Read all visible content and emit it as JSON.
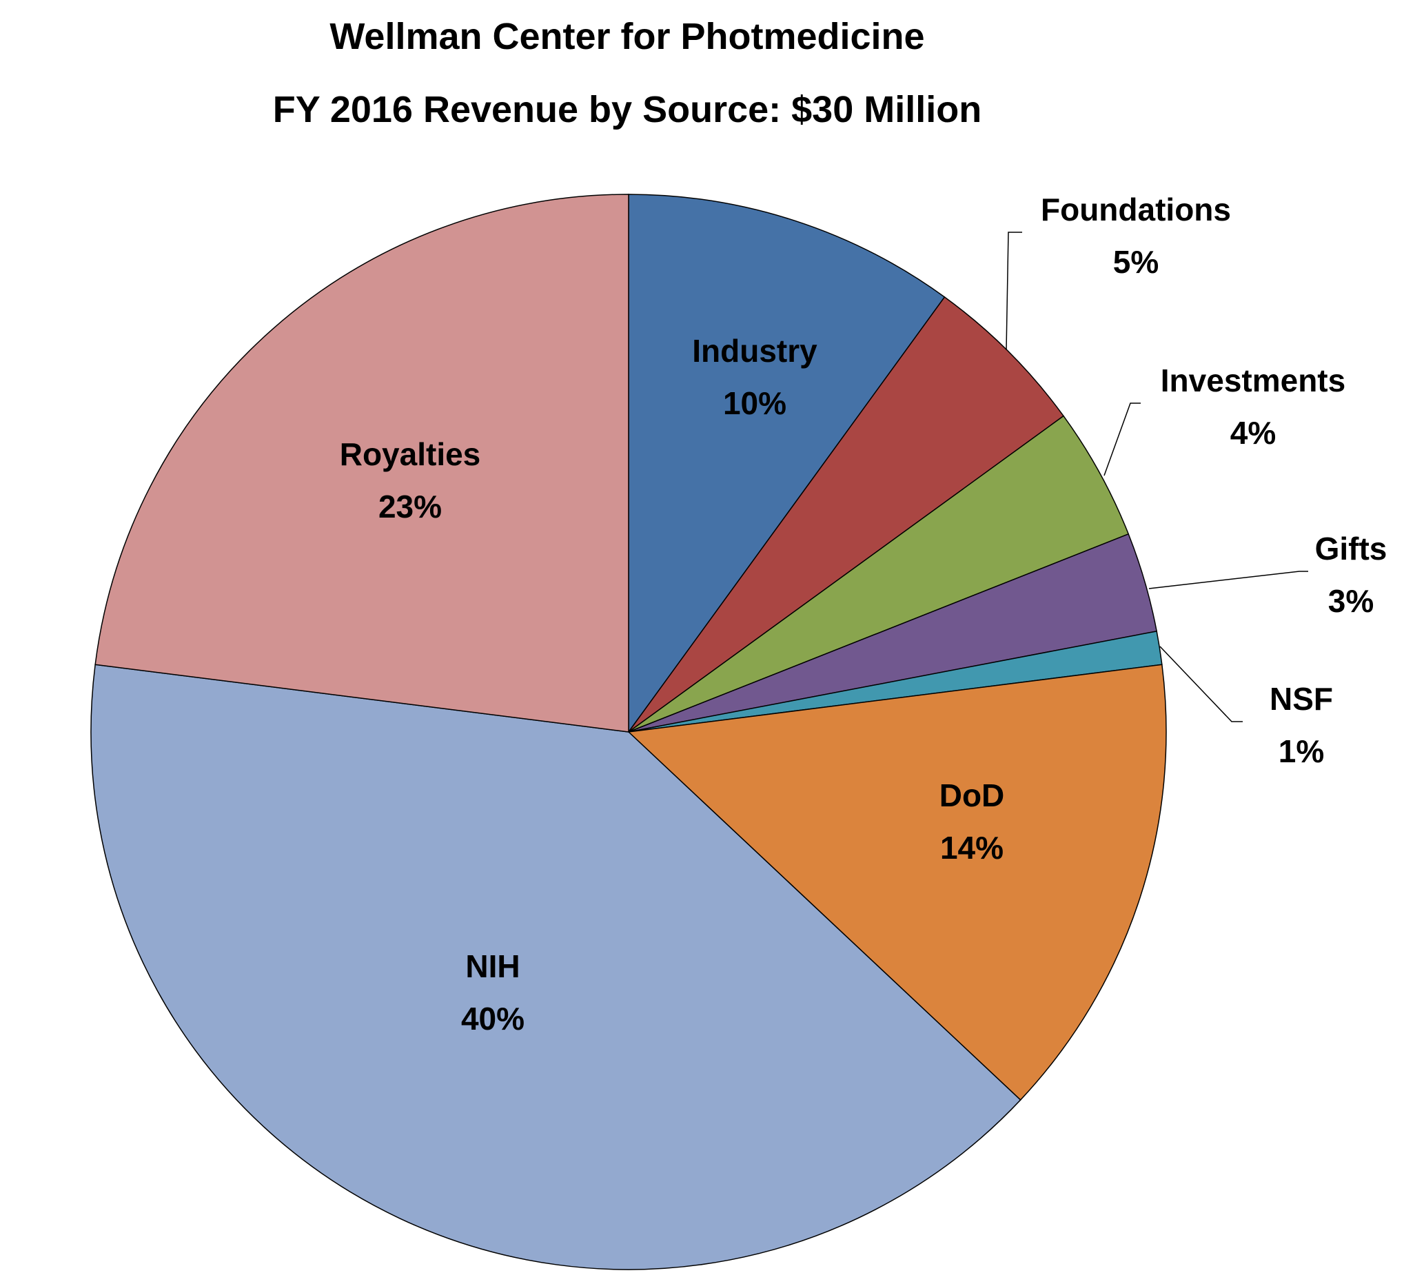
{
  "chart_data": {
    "type": "pie",
    "title": "Wellman Center for Photmedicine",
    "subtitle": "FY 2016 Revenue by Source:  $30 Million",
    "start_angle_deg": 0,
    "direction": "clockwise",
    "slices": [
      {
        "label": "Industry",
        "value": 10,
        "value_label": "10%",
        "color": "#4572A7"
      },
      {
        "label": "Foundations",
        "value": 5,
        "value_label": "5%",
        "color": "#AA4643"
      },
      {
        "label": "Investments",
        "value": 4,
        "value_label": "4%",
        "color": "#89A54E"
      },
      {
        "label": "Gifts",
        "value": 3,
        "value_label": "3%",
        "color": "#71588F"
      },
      {
        "label": "NSF",
        "value": 1,
        "value_label": "1%",
        "color": "#4198AF"
      },
      {
        "label": "DoD",
        "value": 14,
        "value_label": "14%",
        "color": "#DB843D"
      },
      {
        "label": "NIH",
        "value": 40,
        "value_label": "40%",
        "color": "#93A9CF"
      },
      {
        "label": "Royalties",
        "value": 23,
        "value_label": "23%",
        "color": "#D19392"
      }
    ]
  }
}
